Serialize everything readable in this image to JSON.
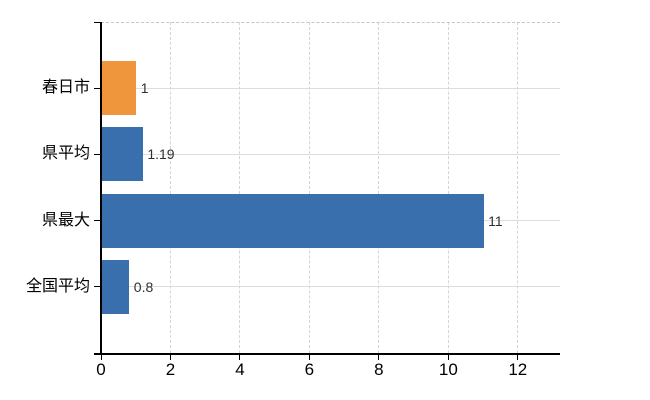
{
  "chart_data": {
    "type": "bar",
    "orientation": "horizontal",
    "title": "",
    "xlabel": "",
    "ylabel": "",
    "categories": [
      "春日市",
      "県平均",
      "県最大",
      "全国平均"
    ],
    "values": [
      1,
      1.19,
      11,
      0.8
    ],
    "value_labels": [
      "1",
      "1.19",
      "11",
      "0.8"
    ],
    "bar_colors": [
      "#ef963d",
      "#3a6fae",
      "#3a6fae",
      "#3a6fae"
    ],
    "x_ticks": [
      0,
      2,
      4,
      6,
      8,
      10,
      12
    ],
    "x_tick_labels": [
      "0",
      "2",
      "4",
      "6",
      "8",
      "10",
      "12"
    ],
    "xlim": [
      0,
      13.2
    ],
    "grid": true,
    "legend": false
  },
  "colors": {
    "highlight_bar": "#ef963d",
    "default_bar": "#3a6fae",
    "gridline": "#dadfda",
    "vertical_gridline": "#d2d6d2",
    "top_border": "#c6c6c6",
    "axis": "#000000",
    "value_label_text": "#303030",
    "tick_label_text": "#000000",
    "background": "#ffffff"
  }
}
